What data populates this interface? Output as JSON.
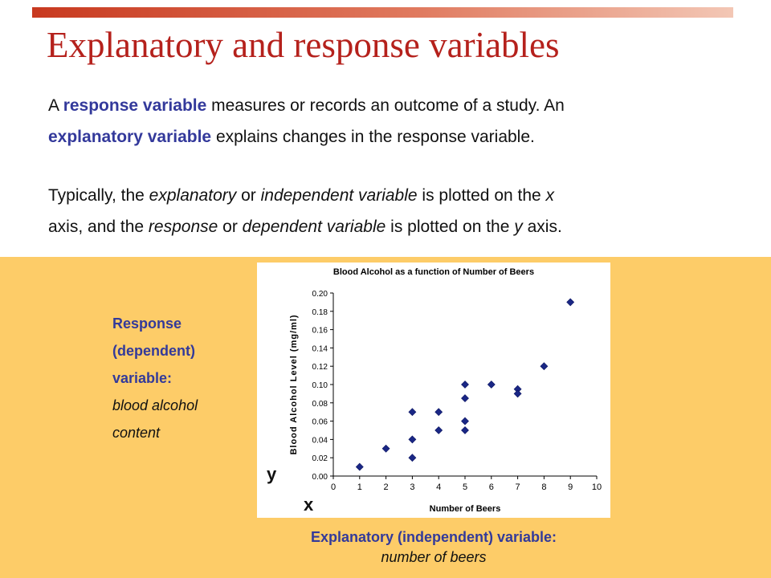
{
  "slide": {
    "title": "Explanatory and response variables",
    "para1": {
      "s1": "A ",
      "response_term": "response variable",
      "s2": " measures or records an outcome of a study. An",
      "explanatory_term": "explanatory variable",
      "s3": " explains changes in the response variable."
    },
    "para2": {
      "s1": "Typically, the ",
      "explanatory_word": "explanatory",
      "s2": " or ",
      "independent_word": "independent variable",
      "s3": " is plotted on the ",
      "x_letter": "x",
      "s4": "axis, and the ",
      "response_word": "response",
      "s5": " or ",
      "dependent_word": "dependent variable",
      "s6": " is plotted on the ",
      "y_letter": "y",
      "s7": " axis."
    },
    "response_label": {
      "line1": "Response",
      "line2": "(dependent)",
      "line3": "variable:",
      "line4": "blood alcohol",
      "line5": "content"
    },
    "y_marker": "y",
    "x_marker": "x",
    "explanatory_label": {
      "bold": "Explanatory (independent) variable:",
      "italic": "number of beers"
    },
    "colors": {
      "title": "#b5211c",
      "highlight": "#33399b",
      "panel": "#fdcc68",
      "points": "#1a2785"
    }
  },
  "chart_data": {
    "type": "scatter",
    "title": "Blood Alcohol as a function of Number of Beers",
    "xlabel": "Number of Beers",
    "ylabel": "Blood Alcohol Level (mg/ml)",
    "xlim": [
      0,
      10
    ],
    "ylim": [
      0,
      0.2
    ],
    "xticks": [
      "0",
      "1",
      "2",
      "3",
      "4",
      "5",
      "6",
      "7",
      "8",
      "9",
      "10"
    ],
    "yticks": [
      "0.00",
      "0.02",
      "0.04",
      "0.06",
      "0.08",
      "0.10",
      "0.12",
      "0.14",
      "0.16",
      "0.18",
      "0.20"
    ],
    "grid": false,
    "legend": "none",
    "points": [
      {
        "x": 1,
        "y": 0.01
      },
      {
        "x": 2,
        "y": 0.03
      },
      {
        "x": 3,
        "y": 0.07
      },
      {
        "x": 3,
        "y": 0.04
      },
      {
        "x": 3,
        "y": 0.02
      },
      {
        "x": 4,
        "y": 0.07
      },
      {
        "x": 4,
        "y": 0.05
      },
      {
        "x": 5,
        "y": 0.1
      },
      {
        "x": 5,
        "y": 0.085
      },
      {
        "x": 5,
        "y": 0.06
      },
      {
        "x": 5,
        "y": 0.05
      },
      {
        "x": 6,
        "y": 0.1
      },
      {
        "x": 7,
        "y": 0.095
      },
      {
        "x": 7,
        "y": 0.09
      },
      {
        "x": 8,
        "y": 0.12
      },
      {
        "x": 9,
        "y": 0.19
      }
    ]
  }
}
